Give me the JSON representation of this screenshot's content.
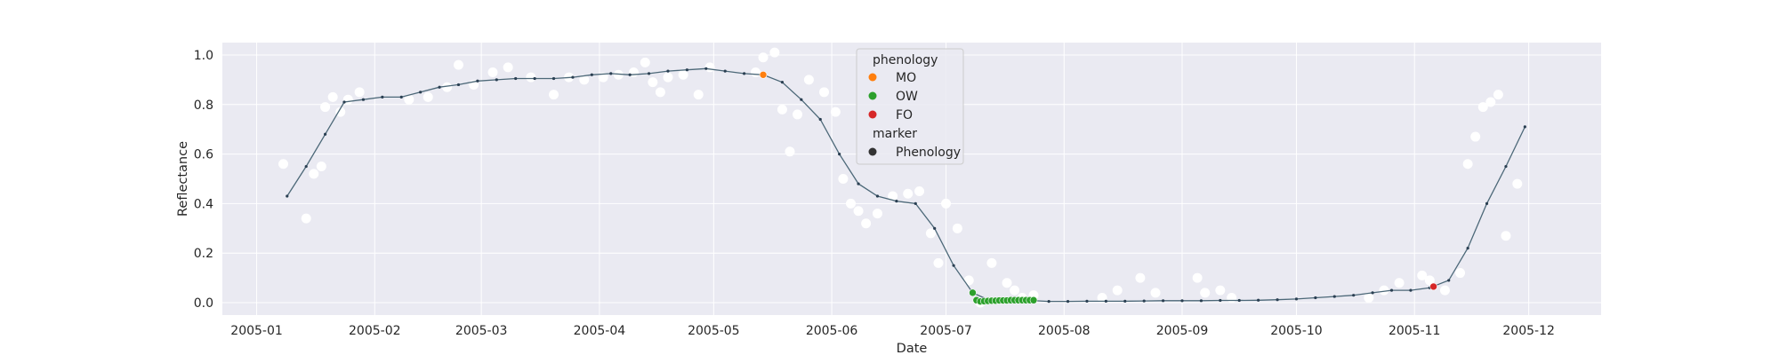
{
  "chart_data": {
    "type": "scatter",
    "title": "",
    "xlabel": "Date",
    "ylabel": "Reflectance",
    "xlim": [
      "2004-12-23",
      "2005-12-20"
    ],
    "ylim": [
      -0.05,
      1.05
    ],
    "grid": true,
    "legend_placement": "top-center",
    "x_ticks": [
      "2005-01",
      "2005-02",
      "2005-03",
      "2005-04",
      "2005-05",
      "2005-06",
      "2005-07",
      "2005-08",
      "2005-09",
      "2005-10",
      "2005-11",
      "2005-12"
    ],
    "y_ticks": [
      "0.0",
      "0.2",
      "0.4",
      "0.6",
      "0.8",
      "1.0"
    ],
    "colors": {
      "background": "#eaeaf2",
      "grid": "#ffffff",
      "raw_points": "#ffffff",
      "curve": "#4c6878",
      "curve_dots": "#2a3f52",
      "MO": "#ff7f0e",
      "OW": "#2ca02c",
      "FO": "#d62728",
      "marker": "#333333"
    },
    "legend": {
      "hue_title": "phenology",
      "hue_items": [
        "MO",
        "OW",
        "FO"
      ],
      "style_title": "marker",
      "style_items": [
        "Phenology"
      ]
    },
    "series": [
      {
        "role": "smoothed",
        "x": [
          "2005-01-09",
          "2005-01-14",
          "2005-01-19",
          "2005-01-24",
          "2005-01-29",
          "2005-02-03",
          "2005-02-08",
          "2005-02-13",
          "2005-02-18",
          "2005-02-23",
          "2005-02-28",
          "2005-03-05",
          "2005-03-10",
          "2005-03-15",
          "2005-03-20",
          "2005-03-25",
          "2005-03-30",
          "2005-04-04",
          "2005-04-09",
          "2005-04-14",
          "2005-04-19",
          "2005-04-24",
          "2005-04-29",
          "2005-05-04",
          "2005-05-09",
          "2005-05-14",
          "2005-05-19",
          "2005-05-24",
          "2005-05-29",
          "2005-06-03",
          "2005-06-08",
          "2005-06-13",
          "2005-06-18",
          "2005-06-23",
          "2005-06-28",
          "2005-07-03",
          "2005-07-08",
          "2005-07-13",
          "2005-07-18",
          "2005-07-23",
          "2005-07-28",
          "2005-08-02",
          "2005-08-07",
          "2005-08-12",
          "2005-08-17",
          "2005-08-22",
          "2005-08-27",
          "2005-09-01",
          "2005-09-06",
          "2005-09-11",
          "2005-09-16",
          "2005-09-21",
          "2005-09-26",
          "2005-10-01",
          "2005-10-06",
          "2005-10-11",
          "2005-10-16",
          "2005-10-21",
          "2005-10-26",
          "2005-10-31",
          "2005-11-05",
          "2005-11-10",
          "2005-11-15",
          "2005-11-20",
          "2005-11-25",
          "2005-11-30"
        ],
        "y": [
          0.43,
          0.55,
          0.68,
          0.81,
          0.82,
          0.83,
          0.83,
          0.85,
          0.87,
          0.88,
          0.895,
          0.9,
          0.905,
          0.905,
          0.905,
          0.91,
          0.92,
          0.925,
          0.92,
          0.925,
          0.935,
          0.94,
          0.945,
          0.935,
          0.925,
          0.92,
          0.89,
          0.82,
          0.74,
          0.6,
          0.48,
          0.43,
          0.41,
          0.4,
          0.3,
          0.15,
          0.04,
          0.005,
          0.008,
          0.009,
          0.005,
          0.005,
          0.006,
          0.006,
          0.006,
          0.007,
          0.008,
          0.008,
          0.008,
          0.009,
          0.009,
          0.01,
          0.012,
          0.015,
          0.02,
          0.025,
          0.03,
          0.04,
          0.05,
          0.05,
          0.06,
          0.09,
          0.22,
          0.4,
          0.55,
          0.71
        ]
      },
      {
        "role": "raw",
        "x": [
          "2005-01-08",
          "2005-01-14",
          "2005-01-16",
          "2005-01-18",
          "2005-01-19",
          "2005-01-21",
          "2005-01-23",
          "2005-01-25",
          "2005-01-28",
          "2005-02-10",
          "2005-02-15",
          "2005-02-20",
          "2005-02-23",
          "2005-02-27",
          "2005-03-04",
          "2005-03-08",
          "2005-03-14",
          "2005-03-20",
          "2005-03-24",
          "2005-03-28",
          "2005-04-02",
          "2005-04-06",
          "2005-04-10",
          "2005-04-13",
          "2005-04-15",
          "2005-04-17",
          "2005-04-19",
          "2005-04-23",
          "2005-04-27",
          "2005-04-30",
          "2005-05-12",
          "2005-05-14",
          "2005-05-17",
          "2005-05-19",
          "2005-05-21",
          "2005-05-23",
          "2005-05-26",
          "2005-05-30",
          "2005-06-02",
          "2005-06-04",
          "2005-06-06",
          "2005-06-08",
          "2005-06-10",
          "2005-06-13",
          "2005-06-17",
          "2005-06-21",
          "2005-06-24",
          "2005-06-27",
          "2005-06-29",
          "2005-07-01",
          "2005-07-04",
          "2005-07-07",
          "2005-07-10",
          "2005-07-13",
          "2005-07-17",
          "2005-07-19",
          "2005-07-21",
          "2005-07-24",
          "2005-08-11",
          "2005-08-15",
          "2005-08-21",
          "2005-08-25",
          "2005-09-05",
          "2005-09-07",
          "2005-09-11",
          "2005-09-14",
          "2005-10-20",
          "2005-10-24",
          "2005-10-28",
          "2005-11-03",
          "2005-11-05",
          "2005-11-09",
          "2005-11-13",
          "2005-11-15",
          "2005-11-17",
          "2005-11-19",
          "2005-11-21",
          "2005-11-23",
          "2005-11-25",
          "2005-11-28"
        ],
        "y": [
          0.56,
          0.34,
          0.52,
          0.55,
          0.79,
          0.83,
          0.77,
          0.82,
          0.85,
          0.82,
          0.83,
          0.87,
          0.96,
          0.88,
          0.93,
          0.95,
          0.91,
          0.84,
          0.91,
          0.9,
          0.91,
          0.92,
          0.93,
          0.97,
          0.89,
          0.85,
          0.91,
          0.92,
          0.84,
          0.95,
          0.93,
          0.99,
          1.01,
          0.78,
          0.61,
          0.76,
          0.9,
          0.85,
          0.77,
          0.5,
          0.4,
          0.37,
          0.32,
          0.36,
          0.43,
          0.44,
          0.45,
          0.28,
          0.16,
          0.4,
          0.3,
          0.09,
          0.0,
          0.16,
          0.08,
          0.05,
          0.02,
          0.03,
          0.02,
          0.05,
          0.1,
          0.04,
          0.1,
          0.04,
          0.05,
          0.02,
          0.02,
          0.05,
          0.08,
          0.11,
          0.09,
          0.05,
          0.12,
          0.56,
          0.67,
          0.79,
          0.81,
          0.84,
          0.27,
          0.48
        ]
      },
      {
        "role": "phenology",
        "name": "MO",
        "x": [
          "2005-05-14"
        ],
        "y": [
          0.92
        ]
      },
      {
        "role": "phenology",
        "name": "OW",
        "x": [
          "2005-07-08",
          "2005-07-09",
          "2005-07-10",
          "2005-07-11",
          "2005-07-12",
          "2005-07-13",
          "2005-07-14",
          "2005-07-15",
          "2005-07-16",
          "2005-07-17",
          "2005-07-18",
          "2005-07-19",
          "2005-07-20",
          "2005-07-21",
          "2005-07-22",
          "2005-07-23",
          "2005-07-24"
        ],
        "y": [
          0.04,
          0.01,
          0.005,
          0.006,
          0.007,
          0.008,
          0.008,
          0.009,
          0.009,
          0.009,
          0.01,
          0.01,
          0.01,
          0.01,
          0.01,
          0.01,
          0.01
        ]
      },
      {
        "role": "phenology",
        "name": "FO",
        "x": [
          "2005-11-06"
        ],
        "y": [
          0.065
        ]
      }
    ]
  }
}
